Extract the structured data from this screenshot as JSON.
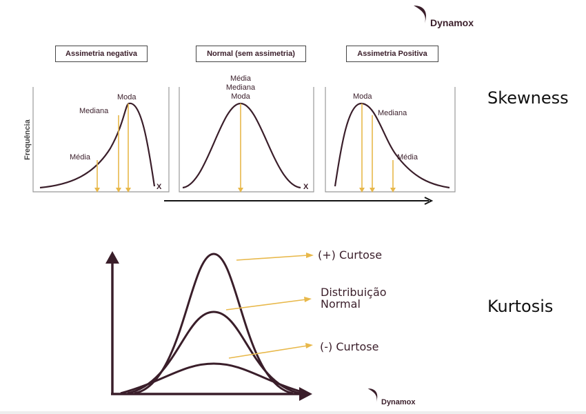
{
  "brand": {
    "name": "Dynamox"
  },
  "skewness": {
    "title": "Skewness",
    "y_axis_label": "Frequência",
    "panels": [
      {
        "title": "Assimetria negativa",
        "x_label": "X",
        "labels": [
          "Moda",
          "Mediana",
          "Média"
        ]
      },
      {
        "title": "Normal (sem assimetria)",
        "x_label": "X",
        "labels": [
          "Média",
          "Mediana",
          "Moda"
        ]
      },
      {
        "title": "Assimetria Positiva",
        "labels": [
          "Moda",
          "Mediana",
          "Média"
        ]
      }
    ]
  },
  "kurtosis": {
    "title": "Kurtosis",
    "labels": {
      "positive": "(+) Curtose",
      "normal_line1": "Distribuição",
      "normal_line2": "Normal",
      "negative": "(-) Curtose"
    }
  },
  "colors": {
    "curve": "#3a1e2a",
    "marker": "#e8b84a",
    "axis": "#999999"
  }
}
